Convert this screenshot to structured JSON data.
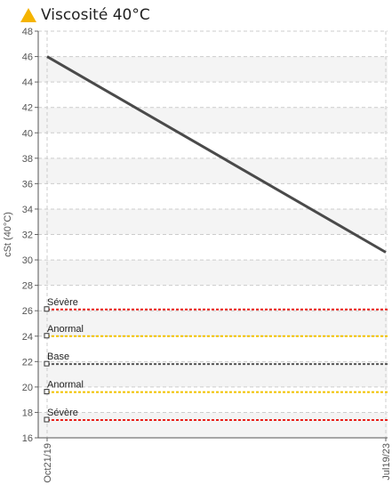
{
  "colors": {
    "warning_icon": "#f5b400",
    "severe": "#e8201a",
    "abnormal": "#f2c200",
    "base": "#555555",
    "series": "#4a4a4a",
    "band": "#f4f4f4",
    "grid": "#cccccc"
  },
  "header": {
    "icon": "warning-triangle-icon",
    "title": "Viscosité 40°C"
  },
  "chart_data": {
    "type": "line",
    "title": "Viscosité 40°C",
    "ylabel": "cSt (40°C)",
    "xlabel": "",
    "ylim": [
      16,
      48
    ],
    "yticks": [
      16,
      18,
      20,
      22,
      24,
      26,
      28,
      30,
      32,
      34,
      36,
      38,
      40,
      42,
      44,
      46,
      48
    ],
    "x_tick_labels": [
      "Oct21/19",
      "Jul19/23"
    ],
    "grid": true,
    "series": [
      {
        "x": [
          "Oct21/19",
          "Jul19/23"
        ],
        "y": [
          46,
          30.6
        ]
      }
    ],
    "thresholds": [
      {
        "label": "Sévère",
        "value": 26.1,
        "kind": "severe"
      },
      {
        "label": "Anormal",
        "value": 24.0,
        "kind": "abnormal"
      },
      {
        "label": "Base",
        "value": 21.8,
        "kind": "base"
      },
      {
        "label": "Anormal",
        "value": 19.6,
        "kind": "abnormal"
      },
      {
        "label": "Sévère",
        "value": 17.4,
        "kind": "severe"
      }
    ]
  }
}
